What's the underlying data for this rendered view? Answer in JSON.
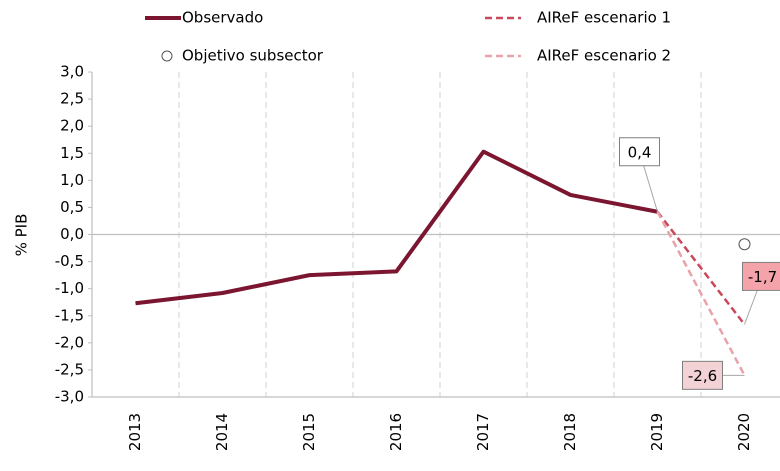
{
  "chart_data": {
    "type": "line",
    "y_label": "% PIB",
    "categories": [
      "2013",
      "2014",
      "2015",
      "2016",
      "2017",
      "2018",
      "2019",
      "2020"
    ],
    "ylim": [
      -3.0,
      3.0
    ],
    "yticks": [
      {
        "value": 3.0,
        "label": "3,0"
      },
      {
        "value": 2.5,
        "label": "2,5"
      },
      {
        "value": 2.0,
        "label": "2,0"
      },
      {
        "value": 1.5,
        "label": "1,5"
      },
      {
        "value": 1.0,
        "label": "1,0"
      },
      {
        "value": 0.5,
        "label": "0,5"
      },
      {
        "value": 0.0,
        "label": "0,0"
      },
      {
        "value": -0.5,
        "label": "-0,5"
      },
      {
        "value": -1.0,
        "label": "-1,0"
      },
      {
        "value": -1.5,
        "label": "-1,5"
      },
      {
        "value": -2.0,
        "label": "-2,0"
      },
      {
        "value": -2.5,
        "label": "-2,5"
      },
      {
        "value": -3.0,
        "label": "-3,0"
      }
    ],
    "series": [
      {
        "name": "Observado",
        "color": "#7b1530",
        "style": "solid",
        "values": [
          -1.27,
          -1.08,
          -0.75,
          -0.68,
          1.53,
          0.73,
          0.42,
          null
        ],
        "value_labels": [
          null,
          null,
          null,
          null,
          null,
          null,
          "0,4",
          null
        ],
        "label_fill": "#ffffff"
      },
      {
        "name": "Objetivo subsector",
        "color": "#555555",
        "style": "marker",
        "values": [
          null,
          null,
          null,
          null,
          null,
          null,
          null,
          -0.18
        ]
      },
      {
        "name": "AIReF escenario 1",
        "color": "#c9485a",
        "style": "dashed",
        "values": [
          null,
          null,
          null,
          null,
          null,
          null,
          0.42,
          -1.66
        ],
        "value_labels": [
          null,
          null,
          null,
          null,
          null,
          null,
          null,
          "-1,7"
        ],
        "label_fill": "#f4a3ab"
      },
      {
        "name": "AIReF escenario 2",
        "color": "#e8a2aa",
        "style": "dashed",
        "values": [
          null,
          null,
          null,
          null,
          null,
          null,
          0.42,
          -2.6
        ],
        "value_labels": [
          null,
          null,
          null,
          null,
          null,
          null,
          null,
          "-2,6"
        ],
        "label_fill": "#f3d2d5"
      }
    ]
  }
}
